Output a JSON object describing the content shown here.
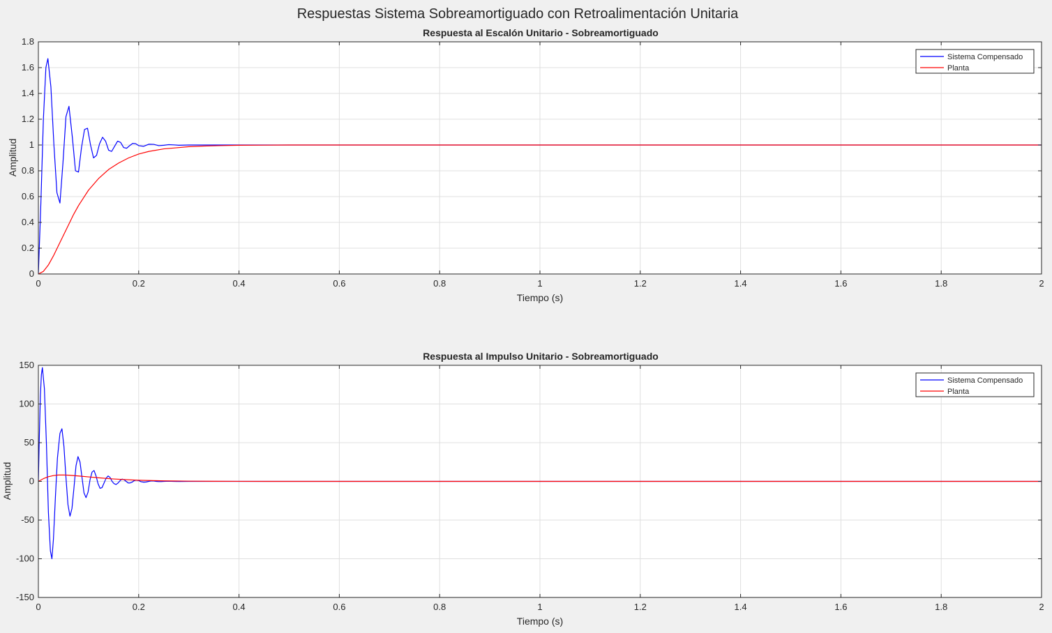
{
  "figure": {
    "title": "Respuestas Sistema Sobreamortiguado con Retroalimentación Unitaria",
    "background": "#f0f0f0"
  },
  "colors": {
    "compensado": "#0000ff",
    "planta": "#ff0000",
    "grid": "#dfdfdf",
    "axes_bg": "#ffffff",
    "axis_line": "#262626"
  },
  "chart_data": [
    {
      "type": "line",
      "title": "Respuesta al Escalón Unitario - Sobreamortiguado",
      "xlabel": "Tiempo (s)",
      "ylabel": "Amplitud",
      "xlim": [
        0,
        2
      ],
      "ylim": [
        0,
        1.8
      ],
      "xticks": [
        0,
        0.2,
        0.4,
        0.6,
        0.8,
        1,
        1.2,
        1.4,
        1.6,
        1.8,
        2
      ],
      "xtick_labels": [
        "0",
        "0.2",
        "0.4",
        "0.6",
        "0.8",
        "1",
        "1.2",
        "1.4",
        "1.6",
        "1.8",
        "2"
      ],
      "yticks": [
        0,
        0.2,
        0.4,
        0.6,
        0.8,
        1,
        1.2,
        1.4,
        1.6,
        1.8
      ],
      "ytick_labels": [
        "0",
        "0.2",
        "0.4",
        "0.6",
        "0.8",
        "1",
        "1.2",
        "1.4",
        "1.6",
        "1.8"
      ],
      "grid": true,
      "legend_position": "top-right",
      "series": [
        {
          "name": "Sistema Compensado",
          "color": "#0000ff",
          "x": [
            0,
            0.005,
            0.01,
            0.015,
            0.019,
            0.025,
            0.031,
            0.037,
            0.043,
            0.049,
            0.055,
            0.061,
            0.068,
            0.074,
            0.08,
            0.086,
            0.092,
            0.098,
            0.104,
            0.11,
            0.116,
            0.122,
            0.128,
            0.134,
            0.14,
            0.146,
            0.152,
            0.158,
            0.164,
            0.17,
            0.176,
            0.182,
            0.188,
            0.194,
            0.2,
            0.21,
            0.22,
            0.23,
            0.24,
            0.25,
            0.26,
            0.27,
            0.28,
            0.3,
            0.33,
            0.36,
            0.4,
            0.5,
            1.0,
            2.0
          ],
          "y": [
            0,
            0.55,
            1.2,
            1.6,
            1.67,
            1.45,
            1.0,
            0.63,
            0.55,
            0.86,
            1.22,
            1.3,
            1.05,
            0.8,
            0.79,
            0.98,
            1.12,
            1.13,
            1.0,
            0.9,
            0.92,
            1.01,
            1.06,
            1.03,
            0.96,
            0.95,
            0.99,
            1.03,
            1.02,
            0.98,
            0.975,
            0.995,
            1.012,
            1.01,
            0.995,
            0.99,
            1.006,
            1.005,
            0.995,
            0.998,
            1.003,
            1.001,
            0.998,
            1.0,
            1.0,
            1.0,
            1.0,
            1.0,
            1.0,
            1.0
          ]
        },
        {
          "name": "Planta",
          "color": "#ff0000",
          "x": [
            0,
            0.01,
            0.02,
            0.03,
            0.04,
            0.05,
            0.06,
            0.07,
            0.08,
            0.09,
            0.1,
            0.12,
            0.14,
            0.16,
            0.18,
            0.2,
            0.22,
            0.25,
            0.28,
            0.3,
            0.33,
            0.36,
            0.4,
            0.45,
            0.5,
            0.6,
            1.0,
            2.0
          ],
          "y": [
            0,
            0.02,
            0.07,
            0.14,
            0.22,
            0.3,
            0.38,
            0.46,
            0.53,
            0.59,
            0.65,
            0.74,
            0.81,
            0.86,
            0.9,
            0.93,
            0.95,
            0.97,
            0.98,
            0.987,
            0.992,
            0.995,
            0.998,
            0.999,
            1.0,
            1.0,
            1.0,
            1.0
          ]
        }
      ]
    },
    {
      "type": "line",
      "title": "Respuesta al Impulso Unitario  - Sobreamortiguado",
      "xlabel": "Tiempo (s)",
      "ylabel": "Amplitud",
      "xlim": [
        0,
        2
      ],
      "ylim": [
        -150,
        150
      ],
      "xticks": [
        0,
        0.2,
        0.4,
        0.6,
        0.8,
        1,
        1.2,
        1.4,
        1.6,
        1.8,
        2
      ],
      "xtick_labels": [
        "0",
        "0.2",
        "0.4",
        "0.6",
        "0.8",
        "1",
        "1.2",
        "1.4",
        "1.6",
        "1.8",
        "2"
      ],
      "yticks": [
        -150,
        -100,
        -50,
        0,
        50,
        100,
        150
      ],
      "ytick_labels": [
        "-150",
        "-100",
        "-50",
        "0",
        "50",
        "100",
        "150"
      ],
      "grid": true,
      "legend_position": "top-right",
      "series": [
        {
          "name": "Sistema Compensado",
          "color": "#0000ff",
          "x": [
            0,
            0.002,
            0.004,
            0.006,
            0.008,
            0.012,
            0.016,
            0.02,
            0.024,
            0.027,
            0.03,
            0.034,
            0.038,
            0.043,
            0.047,
            0.051,
            0.055,
            0.059,
            0.063,
            0.067,
            0.071,
            0.075,
            0.079,
            0.083,
            0.087,
            0.091,
            0.095,
            0.099,
            0.103,
            0.107,
            0.111,
            0.115,
            0.119,
            0.123,
            0.127,
            0.131,
            0.135,
            0.139,
            0.143,
            0.147,
            0.151,
            0.155,
            0.159,
            0.163,
            0.167,
            0.171,
            0.175,
            0.179,
            0.183,
            0.187,
            0.191,
            0.195,
            0.2,
            0.205,
            0.21,
            0.215,
            0.22,
            0.225,
            0.23,
            0.235,
            0.24,
            0.245,
            0.25,
            0.26,
            0.27,
            0.28,
            0.3,
            0.32,
            0.35,
            0.4,
            0.5,
            1.0,
            2.0
          ],
          "y": [
            0,
            60,
            110,
            138,
            147,
            120,
            50,
            -40,
            -90,
            -100,
            -75,
            -20,
            30,
            62,
            68,
            45,
            5,
            -30,
            -45,
            -35,
            -8,
            20,
            32,
            25,
            5,
            -15,
            -21,
            -14,
            2,
            12,
            14,
            7,
            -3,
            -9,
            -8,
            -2,
            4,
            7,
            5,
            0,
            -3,
            -4,
            -2,
            1,
            3,
            2,
            0,
            -2,
            -2,
            -1,
            1,
            1.5,
            1,
            -0.5,
            -1,
            -0.8,
            0,
            0.6,
            0.5,
            0,
            -0.3,
            -0.3,
            0,
            0.2,
            0,
            -0.1,
            0,
            0,
            0,
            0,
            0,
            0,
            0
          ]
        },
        {
          "name": "Planta",
          "color": "#ff0000",
          "x": [
            0,
            0.01,
            0.02,
            0.03,
            0.04,
            0.05,
            0.06,
            0.08,
            0.1,
            0.12,
            0.15,
            0.18,
            0.2,
            0.25,
            0.3,
            0.35,
            0.4,
            0.5,
            1.0,
            2.0
          ],
          "y": [
            0,
            3.5,
            6,
            7.5,
            8.2,
            8.3,
            8,
            7,
            5.8,
            4.6,
            3.1,
            2,
            1.5,
            0.7,
            0.3,
            0.12,
            0.05,
            0.01,
            0,
            0
          ]
        }
      ]
    }
  ]
}
